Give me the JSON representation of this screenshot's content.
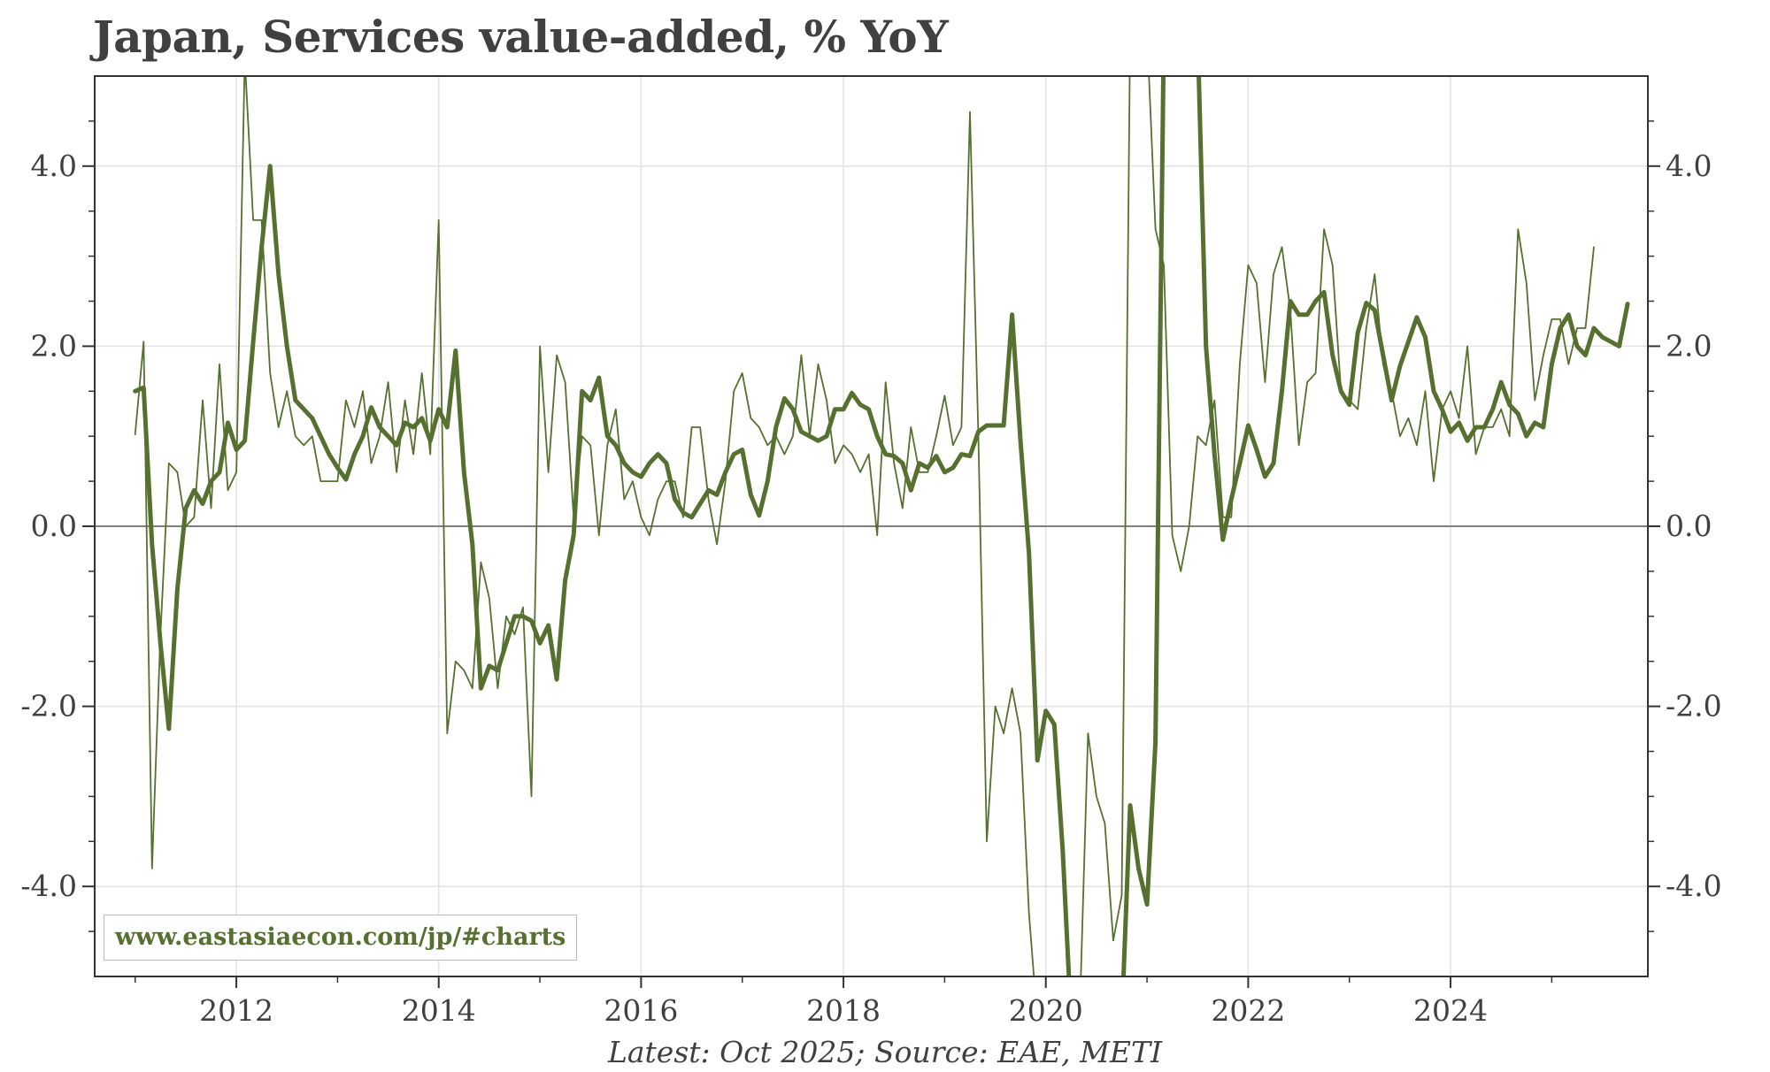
{
  "chart_data": {
    "type": "line",
    "title": "Japan, Services value-added, % YoY",
    "footnote": "Latest: Oct 2025; Source: EAE, METI",
    "watermark": "www.eastasiaecon.com/jp/#charts",
    "xlim": [
      2010.6,
      2025.95
    ],
    "ylim": [
      -5.0,
      5.0
    ],
    "x_ticks": [
      "2012",
      "2014",
      "2016",
      "2018",
      "2020",
      "2022",
      "2024"
    ],
    "y_ticks_left": [
      "4.0",
      "2.0",
      "0.0",
      "-2.0",
      "-4.0"
    ],
    "y_ticks_right": [
      "4.0",
      "2.0",
      "0.0",
      "-2.0",
      "-4.0"
    ],
    "grid": true,
    "zero_line": true,
    "x_start": "2011-01",
    "x_step": "1 month",
    "colors": {
      "series": "#55702f",
      "zero": "#808080",
      "grid": "#e2e2e2",
      "text": "#404040"
    },
    "series": [
      {
        "style": "thin",
        "values": [
          1.02,
          2.05,
          -3.8,
          -1.2,
          0.7,
          0.6,
          0.0,
          0.1,
          1.4,
          0.2,
          1.8,
          0.4,
          0.6,
          5.2,
          3.4,
          3.4,
          1.7,
          1.1,
          1.5,
          1.0,
          0.9,
          1.0,
          0.5,
          0.5,
          0.5,
          1.4,
          1.1,
          1.5,
          0.7,
          1.0,
          1.6,
          0.6,
          1.4,
          0.8,
          1.7,
          0.8,
          3.4,
          -2.3,
          -1.5,
          -1.6,
          -1.8,
          -0.4,
          -0.8,
          -1.8,
          -1.0,
          -1.2,
          -0.9,
          -3.0,
          2.0,
          0.6,
          1.9,
          1.6,
          0.1,
          1.0,
          0.9,
          -0.1,
          0.9,
          1.3,
          0.3,
          0.5,
          0.1,
          -0.1,
          0.3,
          0.5,
          0.5,
          0.1,
          1.1,
          1.1,
          0.3,
          -0.2,
          0.5,
          1.5,
          1.7,
          1.2,
          1.1,
          0.9,
          1.0,
          0.8,
          1.0,
          1.9,
          1.0,
          1.8,
          1.4,
          0.7,
          0.9,
          0.8,
          0.6,
          0.8,
          -0.1,
          1.6,
          0.7,
          0.2,
          1.1,
          0.6,
          0.6,
          1.0,
          1.45,
          0.9,
          1.1,
          4.6,
          1.0,
          -3.5,
          -2.0,
          -2.3,
          -1.8,
          -2.3,
          -4.3,
          -5.5,
          -5.5,
          -5.5,
          -5.5,
          -5.5,
          -5.5,
          -2.3,
          -3.0,
          -3.3,
          -4.6,
          -4.1,
          5.5,
          5.5,
          5.5,
          3.3,
          2.9,
          -0.1,
          -0.5,
          0.0,
          1.0,
          0.9,
          1.4,
          0.1,
          0.1,
          1.8,
          2.9,
          2.7,
          1.6,
          2.8,
          3.1,
          2.4,
          0.9,
          1.6,
          1.7,
          3.3,
          2.9,
          1.5,
          1.4,
          1.3,
          2.2,
          2.8,
          1.8,
          1.5,
          1.0,
          1.2,
          0.9,
          1.5,
          0.5,
          1.3,
          1.5,
          1.2,
          2.0,
          0.8,
          1.1,
          1.1,
          1.3,
          1.0,
          3.3,
          2.7,
          1.4,
          1.9,
          2.3,
          2.3,
          1.8,
          2.2,
          2.2,
          3.1
        ]
      },
      {
        "style": "thick",
        "values": [
          1.5,
          1.54,
          -0.2,
          -1.3,
          -2.25,
          -0.7,
          0.2,
          0.4,
          0.25,
          0.5,
          0.6,
          1.15,
          0.85,
          0.95,
          2.05,
          3.1,
          4.0,
          2.8,
          2.0,
          1.4,
          1.3,
          1.2,
          1.0,
          0.8,
          0.65,
          0.52,
          0.8,
          1.0,
          1.32,
          1.1,
          1.0,
          0.9,
          1.15,
          1.1,
          1.2,
          0.95,
          1.3,
          1.1,
          1.95,
          0.6,
          -0.2,
          -1.8,
          -1.55,
          -1.6,
          -1.3,
          -1.0,
          -1.0,
          -1.05,
          -1.3,
          -1.1,
          -1.7,
          -0.6,
          -0.1,
          1.5,
          1.4,
          1.65,
          1.0,
          0.9,
          0.7,
          0.6,
          0.55,
          0.7,
          0.8,
          0.7,
          0.3,
          0.15,
          0.1,
          0.25,
          0.4,
          0.35,
          0.6,
          0.8,
          0.85,
          0.35,
          0.12,
          0.5,
          1.1,
          1.42,
          1.3,
          1.05,
          1.0,
          0.95,
          1.0,
          1.3,
          1.3,
          1.48,
          1.35,
          1.3,
          1.0,
          0.8,
          0.78,
          0.7,
          0.4,
          0.7,
          0.65,
          0.78,
          0.6,
          0.65,
          0.8,
          0.78,
          1.05,
          1.12,
          1.12,
          1.12,
          2.35,
          0.95,
          -0.3,
          -2.6,
          -2.05,
          -2.2,
          -3.6,
          -5.5,
          -5.5,
          -5.5,
          -5.5,
          -5.5,
          -5.5,
          -5.5,
          -3.1,
          -3.8,
          -4.2,
          -2.4,
          5.5,
          5.5,
          5.5,
          5.5,
          5.5,
          2.0,
          0.8,
          -0.15,
          0.3,
          0.7,
          1.12,
          0.85,
          0.55,
          0.7,
          1.5,
          2.5,
          2.35,
          2.35,
          2.5,
          2.6,
          1.9,
          1.5,
          1.35,
          2.15,
          2.48,
          2.4,
          1.9,
          1.4,
          1.78,
          2.05,
          2.32,
          2.1,
          1.5,
          1.3,
          1.05,
          1.15,
          0.95,
          1.1,
          1.1,
          1.3,
          1.6,
          1.35,
          1.25,
          1.0,
          1.15,
          1.1,
          1.8,
          2.2,
          2.35,
          2.0,
          1.9,
          2.2,
          2.1,
          2.05,
          2.0,
          2.47
        ]
      }
    ]
  }
}
